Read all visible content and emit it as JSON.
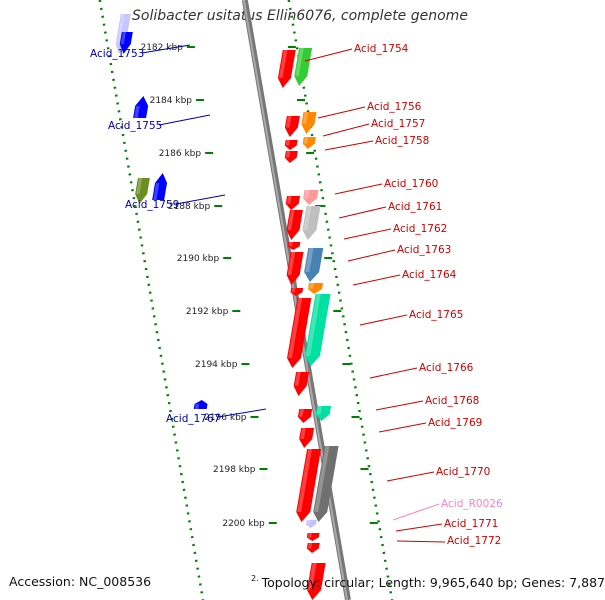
{
  "title": "Solibacter usitatus Ellin6076, complete genome",
  "accession": "Accession: NC_008536",
  "topology_mark": "2.",
  "topology": "Topology: circular; Length: 9,965,640 bp; Genes: 7,887",
  "colors": {
    "red": "#ff0000",
    "blue": "#0000ff",
    "green": "#33cc33",
    "orange": "#ff8800",
    "pink": "#ff9999",
    "lightgray": "#bfbfbf",
    "steelblue": "#4682b4",
    "teal": "#00e0a0",
    "olive": "#6b8e23",
    "darkgray": "#707070",
    "lavender": "#c0c0ff",
    "label_right": "#cc0000",
    "label_left": "#0000aa",
    "label_rna": "#ff80c0",
    "ruler": "#008000"
  },
  "kbp_labels": [
    {
      "text": "2182 kbp"
    },
    {
      "text": "2184 kbp"
    },
    {
      "text": "2186 kbp"
    },
    {
      "text": "2188 kbp"
    },
    {
      "text": "2190 kbp"
    },
    {
      "text": "2192 kbp"
    },
    {
      "text": "2194 kbp"
    },
    {
      "text": "2196 kbp"
    },
    {
      "text": "2198 kbp"
    },
    {
      "text": "2200 kbp"
    }
  ],
  "genes_left": [
    {
      "label": "Acid_1753"
    },
    {
      "label": "Acid_1755"
    },
    {
      "label": "Acid_1759"
    },
    {
      "label": "Acid_1767"
    }
  ],
  "genes_right": [
    {
      "label": "Acid_1754"
    },
    {
      "label": "Acid_1756"
    },
    {
      "label": "Acid_1757"
    },
    {
      "label": "Acid_1758"
    },
    {
      "label": "Acid_1760"
    },
    {
      "label": "Acid_1761"
    },
    {
      "label": "Acid_1762"
    },
    {
      "label": "Acid_1763"
    },
    {
      "label": "Acid_1764"
    },
    {
      "label": "Acid_1765"
    },
    {
      "label": "Acid_1766"
    },
    {
      "label": "Acid_1768"
    },
    {
      "label": "Acid_1769"
    },
    {
      "label": "Acid_1770"
    },
    {
      "label": "Acid_R0026",
      "rna": true
    },
    {
      "label": "Acid_1771"
    },
    {
      "label": "Acid_1772"
    }
  ]
}
